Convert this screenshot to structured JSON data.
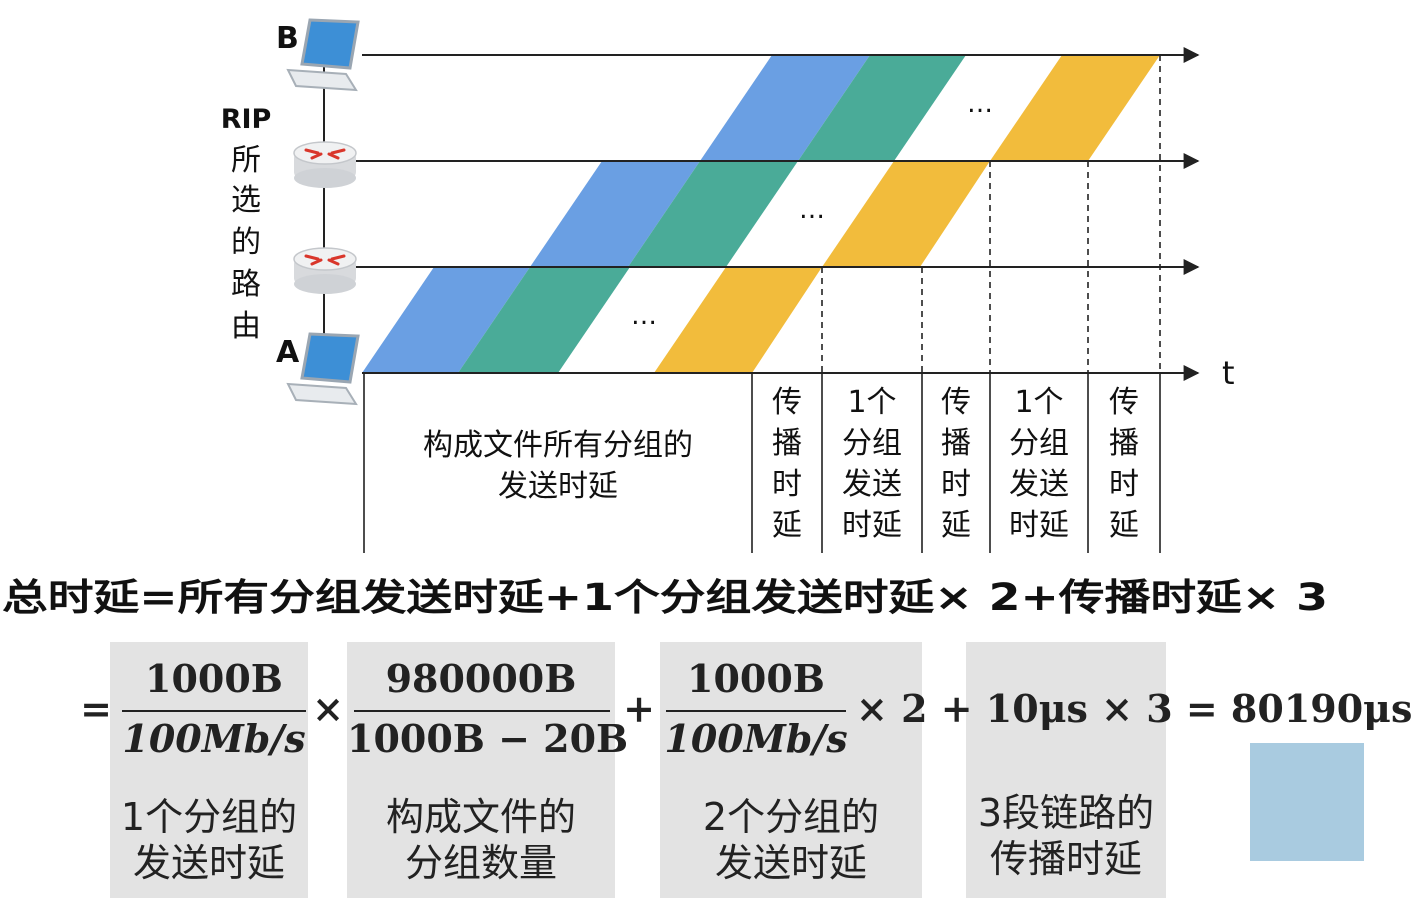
{
  "nodes": {
    "top_label": "B",
    "bottom_label": "A"
  },
  "route_label": [
    "RIP",
    "所",
    "选",
    "的",
    "路",
    "由"
  ],
  "time_axis_label": "t",
  "ellipsis": "…",
  "segments": {
    "all_groups": [
      "构成文件所有分组的",
      "发送时延"
    ],
    "prop1": [
      "传",
      "播",
      "时",
      "延"
    ],
    "one_group_1": [
      "1个",
      "分组",
      "发送",
      "时延"
    ],
    "prop2": [
      "传",
      "播",
      "时",
      "延"
    ],
    "one_group_2": [
      "1个",
      "分组",
      "发送",
      "时延"
    ],
    "prop3": [
      "传",
      "播",
      "时",
      "延"
    ]
  },
  "formula_line": "总时延=所有分组发送时延+1个分组发送时延× 2+传播时延× 3",
  "math": {
    "eq_sign": "=",
    "f1_num": "1000B",
    "f1_den": "100Mb/s",
    "times1": "×",
    "f2_num": "980000B",
    "f2_den": "1000B − 20B",
    "plus1": "+",
    "f3_num": "1000B",
    "f3_den": "100Mb/s",
    "tail": "× 2 + 10μs × 3 = 80190μs"
  },
  "captions": {
    "c1": [
      "1个分组的",
      "发送时延"
    ],
    "c2": [
      "构成文件的",
      "分组数量"
    ],
    "c3": [
      "2个分组的",
      "发送时延"
    ],
    "c4": [
      "3段链路的",
      "传播时延"
    ]
  },
  "colors": {
    "blue": "#6a9fe3",
    "green": "#4aab98",
    "yellow": "#f2bc3c",
    "note_box": "#a9cbe0",
    "caption_bg": "#e3e3e3"
  }
}
